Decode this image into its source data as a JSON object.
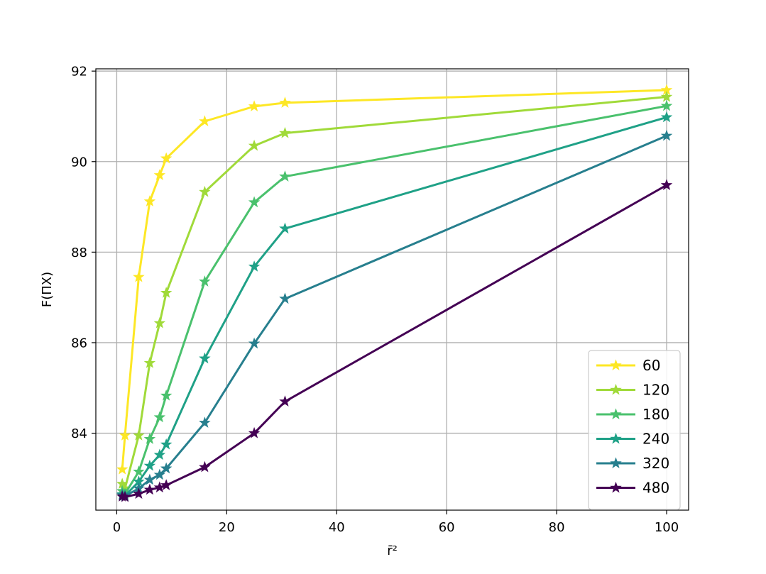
{
  "chart_data": {
    "type": "line",
    "title": "",
    "xlabel": "r̄²",
    "ylabel": "F(ΠX)",
    "xlim": [
      -3.8,
      104
    ],
    "ylim": [
      82.3,
      92.05
    ],
    "xticks": [
      0,
      20,
      40,
      60,
      80,
      100
    ],
    "yticks": [
      84,
      86,
      88,
      90,
      92
    ],
    "grid": true,
    "legend_position": "lower-right",
    "marker": "star",
    "x": [
      1,
      1.5,
      4,
      6,
      7.8,
      9,
      16,
      25,
      30.6,
      100
    ],
    "series": [
      {
        "name": "60",
        "color": "#fde725",
        "values": [
          83.2,
          83.95,
          87.45,
          89.12,
          89.7,
          90.07,
          90.89,
          91.22,
          91.3,
          91.58
        ]
      },
      {
        "name": "120",
        "color": "#a0da39",
        "values": [
          82.88,
          82.78,
          83.95,
          85.55,
          86.43,
          87.1,
          89.33,
          90.35,
          90.63,
          91.43
        ]
      },
      {
        "name": "180",
        "color": "#4ac16d",
        "values": [
          82.72,
          82.66,
          83.15,
          83.87,
          84.35,
          84.83,
          87.35,
          89.1,
          89.67,
          91.23
        ]
      },
      {
        "name": "240",
        "color": "#1fa187",
        "values": [
          82.65,
          82.62,
          82.93,
          83.28,
          83.52,
          83.75,
          85.65,
          87.68,
          88.52,
          90.98
        ]
      },
      {
        "name": "320",
        "color": "#277f8e",
        "values": [
          82.63,
          82.61,
          82.78,
          82.97,
          83.08,
          83.22,
          84.23,
          85.98,
          86.97,
          90.57
        ]
      },
      {
        "name": "480",
        "color": "#440154",
        "values": [
          82.6,
          82.59,
          82.66,
          82.75,
          82.8,
          82.85,
          83.25,
          84.0,
          84.7,
          89.48
        ]
      }
    ]
  }
}
